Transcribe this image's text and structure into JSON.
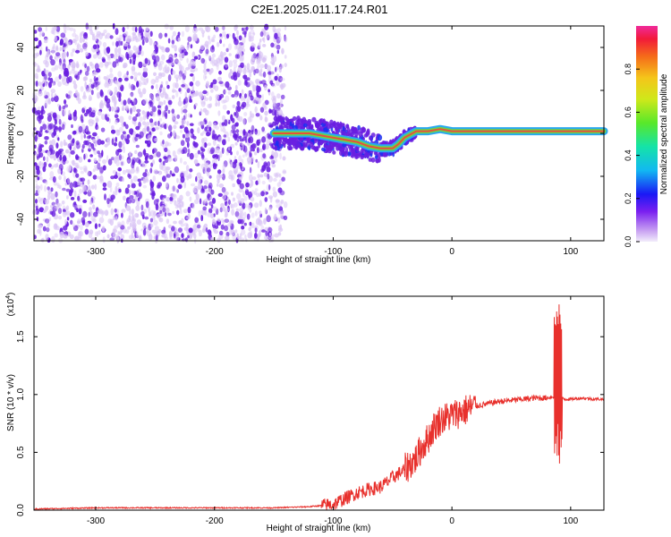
{
  "title": "C2E1.2025.011.17.24.R01",
  "colors": {
    "snr_line": "#e8302c",
    "spectro_point": "#6a1fe0",
    "spectro_fill": "#d9c4f5",
    "axis": "#000000"
  },
  "chart_data": [
    {
      "type": "heatmap",
      "name": "spectrogram",
      "title": "C2E1.2025.011.17.24.R01",
      "xlabel": "Height of straight line (km)",
      "ylabel": "Frequency (Hz)",
      "xlim": [
        -352,
        128
      ],
      "ylim": [
        -50,
        50
      ],
      "xticks": [
        -300,
        -200,
        -100,
        0,
        100
      ],
      "yticks": [
        -40,
        -20,
        0,
        20,
        40
      ],
      "colorbar": {
        "label": "Normalized spectral amplitude",
        "range": [
          0,
          1
        ],
        "ticks": [
          "0.0",
          "0.2",
          "0.4",
          "0.6",
          "0.8"
        ],
        "tick_values": [
          0,
          0.2,
          0.4,
          0.6,
          0.8
        ]
      },
      "noise_band_x": [
        -352,
        -140
      ],
      "ridge": {
        "x": [
          -150,
          -120,
          -100,
          -80,
          -70,
          -60,
          -50,
          -45,
          -40,
          -30,
          -20,
          -10,
          0,
          20,
          40,
          60,
          80,
          90,
          100,
          128
        ],
        "y": [
          0,
          0,
          -2,
          -4,
          -6,
          -7,
          -7,
          -5,
          -2,
          1,
          1,
          2,
          1,
          1,
          1,
          1,
          1,
          1,
          1,
          1
        ]
      },
      "grid": false
    },
    {
      "type": "line",
      "name": "snr",
      "xlabel": "Height of straight line (km)",
      "ylabel": "SNR (10 * v/v)",
      "y_multiplier": "(x10",
      "y_exponent": "4",
      "xlim": [
        -352,
        128
      ],
      "ylim": [
        0,
        1.85
      ],
      "xticks": [
        -300,
        -200,
        -100,
        0,
        100
      ],
      "yticks": [
        0.0,
        0.5,
        1.0,
        1.5
      ],
      "ytick_labels": [
        "0.0",
        "0.5",
        "1.0",
        "1.5"
      ],
      "series": [
        {
          "x": [
            -352,
            -300,
            -250,
            -200,
            -150,
            -120,
            -100,
            -90,
            -80,
            -70,
            -60,
            -50,
            -40,
            -30,
            -25,
            -20,
            -15,
            -10,
            -5,
            0,
            10,
            20,
            30,
            40,
            50,
            60,
            70,
            80,
            85,
            88,
            90,
            92,
            95,
            100,
            110,
            120,
            128
          ],
          "y": [
            0.01,
            0.02,
            0.02,
            0.02,
            0.02,
            0.03,
            0.05,
            0.1,
            0.15,
            0.18,
            0.2,
            0.28,
            0.35,
            0.45,
            0.55,
            0.62,
            0.72,
            0.78,
            0.8,
            0.82,
            0.86,
            0.9,
            0.92,
            0.94,
            0.95,
            0.96,
            0.97,
            0.97,
            0.98,
            0.97,
            0.96,
            0.98,
            0.96,
            0.96,
            0.97,
            0.96,
            0.96
          ]
        }
      ],
      "grid": false
    }
  ]
}
